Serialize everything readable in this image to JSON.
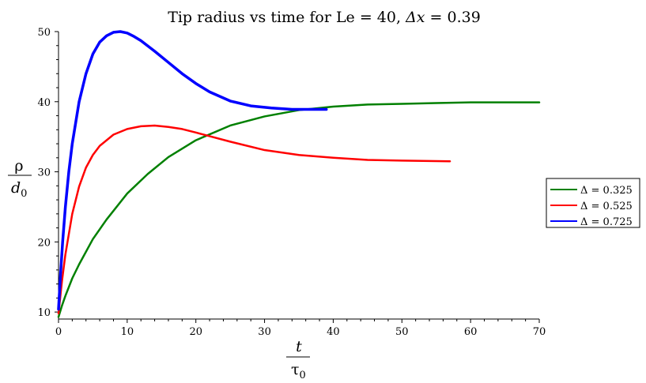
{
  "chart_data": {
    "type": "line",
    "title": "Tip radius vs time for Le = 40,  Δx = 0.39",
    "title_parts": {
      "prefix": "Tip radius vs time for Le = 40,  ",
      "var": "Δx",
      "suffix": " = 0.39"
    },
    "xlabel": {
      "num": "t",
      "den": "τ",
      "den_sub": "0"
    },
    "ylabel": {
      "num": "ρ",
      "den": "d",
      "den_sub": "0"
    },
    "xlim": [
      0,
      70
    ],
    "ylim": [
      9,
      50
    ],
    "xticks": [
      0,
      10,
      20,
      30,
      40,
      50,
      60,
      70
    ],
    "yticks": [
      10,
      20,
      30,
      40,
      50
    ],
    "grid": false,
    "legend_position": "right",
    "series": [
      {
        "name": "Δ = 0.325",
        "color": "#008000",
        "x": [
          0,
          0.5,
          1,
          2,
          3,
          5,
          7,
          10,
          13,
          16,
          20,
          25,
          30,
          35,
          40,
          45,
          50,
          55,
          60,
          65,
          70
        ],
        "y": [
          9.3,
          10.9,
          12.3,
          14.8,
          16.8,
          20.4,
          23.2,
          26.9,
          29.7,
          32.1,
          34.5,
          36.6,
          37.9,
          38.8,
          39.3,
          39.6,
          39.7,
          39.8,
          39.9,
          39.9,
          39.9
        ]
      },
      {
        "name": "Δ = 0.525",
        "color": "#ff0000",
        "x": [
          0,
          0.5,
          1,
          2,
          3,
          4,
          5,
          6,
          8,
          10,
          12,
          14,
          16,
          18,
          20,
          25,
          30,
          35,
          40,
          45,
          50,
          57
        ],
        "y": [
          9.8,
          14.4,
          18.2,
          24.0,
          27.9,
          30.6,
          32.4,
          33.7,
          35.3,
          36.1,
          36.5,
          36.6,
          36.4,
          36.1,
          35.6,
          34.3,
          33.1,
          32.4,
          32.0,
          31.7,
          31.6,
          31.5
        ]
      },
      {
        "name": "Δ = 0.725",
        "color": "#0000ff",
        "x": [
          0,
          0.3,
          0.6,
          1,
          1.5,
          2,
          3,
          4,
          5,
          6,
          7,
          8,
          9,
          10,
          11,
          12,
          14,
          16,
          18,
          20,
          22,
          25,
          28,
          31,
          34,
          36,
          39
        ],
        "y": [
          10.4,
          15.5,
          20.0,
          25.0,
          30.0,
          34.0,
          40.0,
          44.0,
          46.8,
          48.5,
          49.4,
          49.9,
          50.0,
          49.8,
          49.3,
          48.7,
          47.2,
          45.6,
          44.0,
          42.6,
          41.4,
          40.1,
          39.4,
          39.1,
          38.9,
          38.9,
          38.9
        ]
      }
    ]
  }
}
